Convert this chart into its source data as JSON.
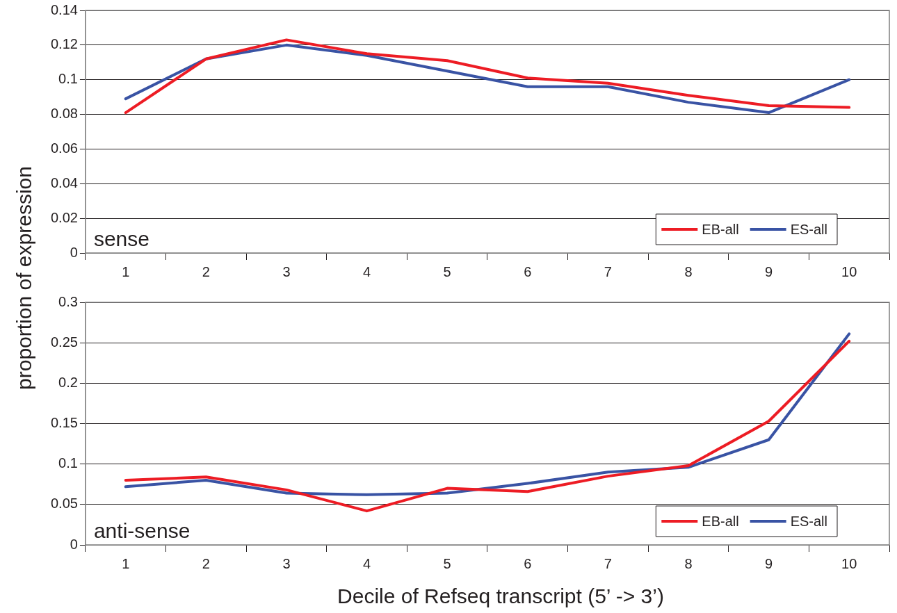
{
  "chart_data": [
    {
      "type": "line",
      "ylabel": "proportion of expression",
      "annotations": [
        "sense"
      ],
      "categories": [
        "1",
        "2",
        "3",
        "4",
        "5",
        "6",
        "7",
        "8",
        "9",
        "10"
      ],
      "series": [
        {
          "name": "EB-all",
          "color": "#ed1c24",
          "values": [
            0.081,
            0.112,
            0.123,
            0.115,
            0.111,
            0.101,
            0.098,
            0.091,
            0.085,
            0.084
          ]
        },
        {
          "name": "ES-all",
          "color": "#3953a4",
          "values": [
            0.089,
            0.112,
            0.12,
            0.114,
            0.105,
            0.096,
            0.096,
            0.087,
            0.081,
            0.1
          ]
        }
      ],
      "ylim": [
        0,
        0.14
      ],
      "yticks": [
        0,
        0.02,
        0.04,
        0.06,
        0.08,
        0.1,
        0.12,
        0.14
      ],
      "grid": "y",
      "legend": "bottom right",
      "marker": "none",
      "line_style": "solid"
    },
    {
      "type": "line",
      "xlabel": "Decile of Refseq transcript (5’ -> 3’)",
      "annotations": [
        "anti-sense"
      ],
      "categories": [
        "1",
        "2",
        "3",
        "4",
        "5",
        "6",
        "7",
        "8",
        "9",
        "10"
      ],
      "series": [
        {
          "name": "EB-all",
          "color": "#ed1c24",
          "values": [
            0.08,
            0.084,
            0.068,
            0.042,
            0.07,
            0.066,
            0.085,
            0.098,
            0.153,
            0.252
          ]
        },
        {
          "name": "ES-all",
          "color": "#3953a4",
          "values": [
            0.072,
            0.08,
            0.064,
            0.062,
            0.064,
            0.076,
            0.09,
            0.096,
            0.13,
            0.261
          ]
        }
      ],
      "ylim": [
        0,
        0.3
      ],
      "yticks": [
        0,
        0.05,
        0.1,
        0.15,
        0.2,
        0.25,
        0.3
      ],
      "grid": "y",
      "legend": "bottom right",
      "marker": "none",
      "line_style": "solid"
    }
  ]
}
